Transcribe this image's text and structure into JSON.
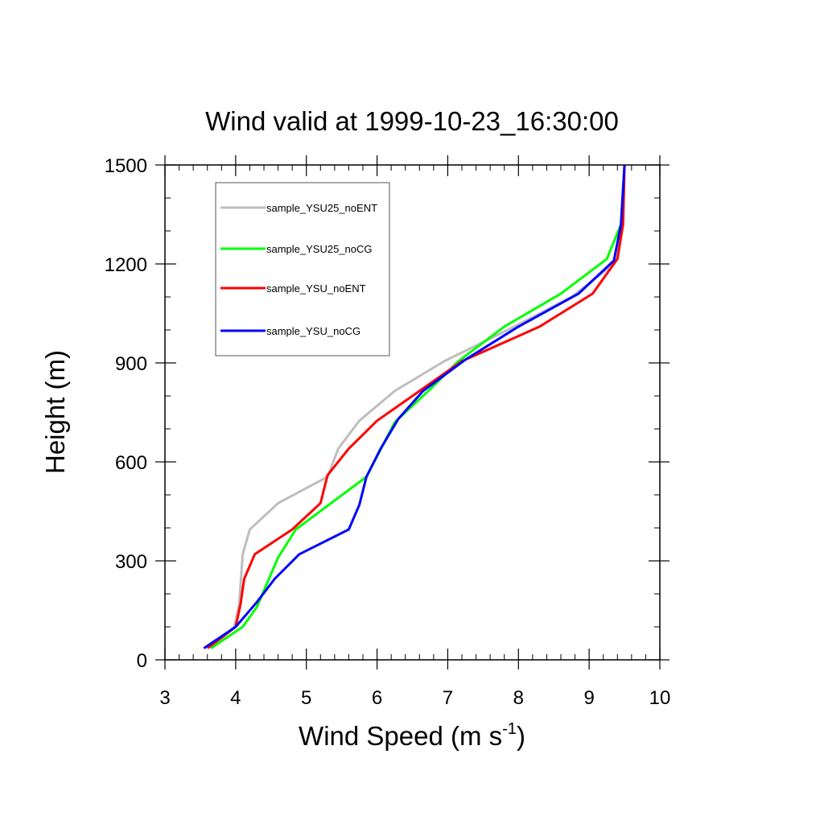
{
  "chart_data": {
    "type": "line",
    "title": "Wind valid at 1999-10-23_16:30:00",
    "xlabel": "Wind Speed (m s",
    "xlabel_superscript": "-1",
    "xlabel_suffix": ")",
    "ylabel": "Height (m)",
    "xlim": [
      3,
      10
    ],
    "ylim": [
      0,
      1500
    ],
    "xticks": [
      "3",
      "4",
      "5",
      "6",
      "7",
      "8",
      "9",
      "10"
    ],
    "yticks": [
      "0",
      "300",
      "600",
      "900",
      "1200",
      "1500"
    ],
    "legend_position": "top-left",
    "series": [
      {
        "name": "sample_YSU25_noENT",
        "color": "#bebebe",
        "points": [
          [
            3.65,
            35
          ],
          [
            3.98,
            100
          ],
          [
            4.05,
            170
          ],
          [
            4.1,
            320
          ],
          [
            4.2,
            395
          ],
          [
            4.6,
            475
          ],
          [
            5.3,
            555
          ],
          [
            5.45,
            640
          ],
          [
            5.75,
            725
          ],
          [
            6.25,
            815
          ],
          [
            6.95,
            905
          ],
          [
            7.85,
            1000
          ],
          [
            8.75,
            1100
          ],
          [
            9.35,
            1200
          ],
          [
            9.45,
            1310
          ],
          [
            9.5,
            1500
          ]
        ]
      },
      {
        "name": "sample_YSU25_noCG",
        "color": "#00ff00",
        "points": [
          [
            3.65,
            35
          ],
          [
            4.1,
            100
          ],
          [
            4.3,
            160
          ],
          [
            4.6,
            310
          ],
          [
            4.85,
            395
          ],
          [
            5.85,
            555
          ],
          [
            6.25,
            720
          ],
          [
            6.75,
            820
          ],
          [
            7.15,
            905
          ],
          [
            7.8,
            1010
          ],
          [
            8.6,
            1110
          ],
          [
            9.25,
            1215
          ],
          [
            9.45,
            1320
          ],
          [
            9.5,
            1500
          ]
        ]
      },
      {
        "name": "sample_YSU_noENT",
        "color": "#ff0000",
        "points": [
          [
            3.6,
            35
          ],
          [
            4.0,
            100
          ],
          [
            4.07,
            170
          ],
          [
            4.12,
            245
          ],
          [
            4.27,
            320
          ],
          [
            4.8,
            395
          ],
          [
            5.2,
            475
          ],
          [
            5.3,
            560
          ],
          [
            5.6,
            640
          ],
          [
            6.0,
            725
          ],
          [
            6.6,
            815
          ],
          [
            7.2,
            905
          ],
          [
            8.3,
            1010
          ],
          [
            9.05,
            1110
          ],
          [
            9.4,
            1215
          ],
          [
            9.48,
            1320
          ],
          [
            9.5,
            1500
          ]
        ]
      },
      {
        "name": "sample_YSU_noCG",
        "color": "#0000ff",
        "points": [
          [
            3.55,
            35
          ],
          [
            4.0,
            100
          ],
          [
            4.3,
            175
          ],
          [
            4.55,
            245
          ],
          [
            4.9,
            320
          ],
          [
            5.6,
            395
          ],
          [
            5.75,
            470
          ],
          [
            5.85,
            555
          ],
          [
            6.05,
            640
          ],
          [
            6.3,
            730
          ],
          [
            6.65,
            815
          ],
          [
            7.25,
            910
          ],
          [
            8.0,
            1010
          ],
          [
            8.85,
            1110
          ],
          [
            9.35,
            1210
          ],
          [
            9.45,
            1320
          ],
          [
            9.5,
            1500
          ]
        ]
      }
    ]
  }
}
